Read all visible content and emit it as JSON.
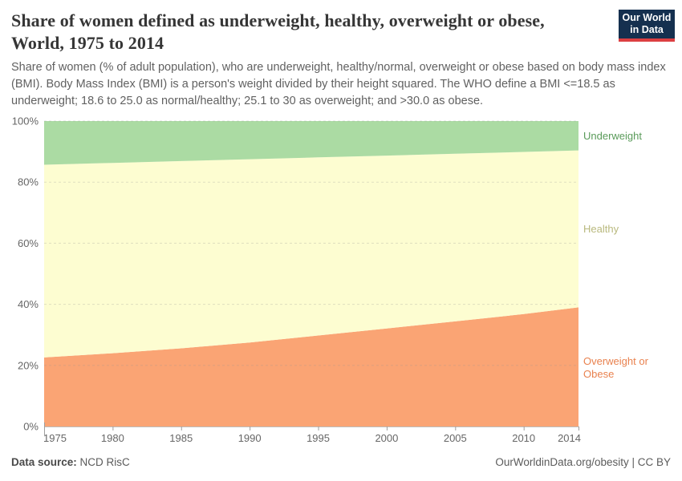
{
  "header": {
    "title_line1": "Share of women defined as underweight, healthy, overweight or obese,",
    "title_line2": "World, 1975 to 2014",
    "subtitle": "Share of women (% of adult population), who are underweight, healthy/normal, overweight or obese based on body mass index (BMI). Body Mass Index (BMI) is a person's weight divided by their height squared. The WHO define a BMI <=18.5 as underweight; 18.6 to 25.0 as normal/healthy; 25.1 to 30 as overweight; and >30.0 as obese."
  },
  "logo": {
    "line1": "Our World",
    "line2": "in Data",
    "bg_color": "#15304f",
    "stripe_color": "#dc3f42"
  },
  "chart_data": {
    "type": "area",
    "stacked": true,
    "title": "Share of women defined as underweight, healthy, overweight or obese, World, 1975 to 2014",
    "x": [
      1975,
      1980,
      1985,
      1990,
      1995,
      2000,
      2005,
      2010,
      2014
    ],
    "xticks": [
      1975,
      1980,
      1985,
      1990,
      1995,
      2000,
      2005,
      2010,
      2014
    ],
    "series": [
      {
        "name": "Overweight or Obese",
        "slug": "overweight-or-obese",
        "fill": "#faa474",
        "label_color": "#e9824f",
        "values": [
          22.6,
          24.0,
          25.6,
          27.5,
          29.8,
          32.1,
          34.4,
          36.8,
          39.0
        ]
      },
      {
        "name": "Healthy",
        "slug": "healthy",
        "fill": "#fdfdd1",
        "label_color": "#b9b97e",
        "values": [
          63.1,
          62.3,
          61.3,
          60.0,
          58.3,
          56.6,
          54.9,
          53.1,
          51.4
        ]
      },
      {
        "name": "Underweight",
        "slug": "underweight",
        "fill": "#abdba3",
        "label_color": "#5a9b5a",
        "values": [
          14.3,
          13.7,
          13.1,
          12.5,
          11.9,
          11.3,
          10.7,
          10.1,
          9.6
        ]
      }
    ],
    "ylim": [
      0,
      100
    ],
    "yticks": [
      0,
      20,
      40,
      60,
      80,
      100
    ],
    "ytick_format": "percent",
    "grid": "dashed-horizontal",
    "legend_position": "right-inline-labels",
    "xlabel": "",
    "ylabel": ""
  },
  "footer": {
    "datasource_label": "Data source:",
    "datasource_value": "NCD RisC",
    "right": "OurWorldinData.org/obesity | CC BY"
  }
}
